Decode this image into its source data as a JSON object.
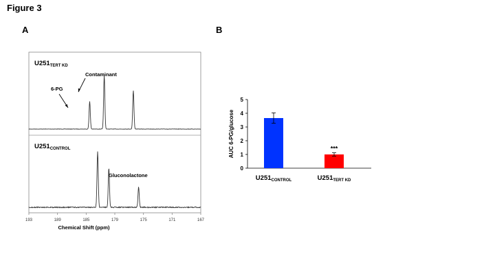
{
  "figure": {
    "title": "Figure 3"
  },
  "panel_a": {
    "label": "A",
    "top_trace_label": {
      "main": "U251",
      "sub": "TERT KD"
    },
    "bottom_trace_label": {
      "main": "U251",
      "sub": "CONTROL"
    },
    "annotations": {
      "six_pg": "6-PG",
      "contaminant": "Contaminant",
      "gluconolactone": "Gluconolactone"
    },
    "xaxis": {
      "label": "Chemical Shift (ppm)",
      "ticks": [
        "193",
        "189",
        "185",
        "179",
        "175",
        "171",
        "167"
      ],
      "range": [
        193,
        167
      ],
      "reversed": true
    },
    "top_peaks": [
      {
        "ppm": 183.8,
        "height": 0.52
      },
      {
        "ppm": 181.6,
        "height": 1.0
      },
      {
        "ppm": 177.2,
        "height": 0.72
      }
    ],
    "bottom_peaks": [
      {
        "ppm": 182.6,
        "height": 1.0
      },
      {
        "ppm": 180.9,
        "height": 0.7
      },
      {
        "ppm": 176.4,
        "height": 0.36
      }
    ]
  },
  "chart_data": {
    "type": "bar",
    "panel_label": "B",
    "categories": [
      {
        "main": "U251",
        "sub": "CONTROL"
      },
      {
        "main": "U251",
        "sub": "TERT KD"
      }
    ],
    "values": [
      3.65,
      1.0
    ],
    "errors": [
      0.38,
      0.12
    ],
    "colors": [
      "#0033ff",
      "#ff0000"
    ],
    "significance": [
      "",
      "***"
    ],
    "ylabel": "AUC 6-PG/glucose",
    "ylim": [
      0,
      5
    ],
    "yticks": [
      "0",
      "1",
      "2",
      "3",
      "4",
      "5"
    ],
    "grid": false
  }
}
